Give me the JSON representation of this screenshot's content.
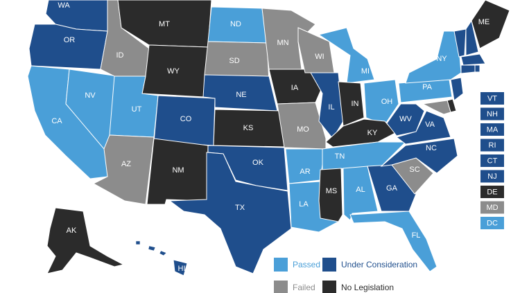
{
  "legend": [
    {
      "label": "Passed",
      "color": "#4a9fd8"
    },
    {
      "label": "Under Consideration",
      "color": "#1f4e8c"
    },
    {
      "label": "Failed",
      "color": "#8c8c8c"
    },
    {
      "label": "No Legislation",
      "color": "#2b2b2b"
    }
  ],
  "states": [
    {
      "label": "WA",
      "status": "Under Consideration"
    },
    {
      "label": "OR",
      "status": "Under Consideration"
    },
    {
      "label": "CA",
      "status": "Passed"
    },
    {
      "label": "NV",
      "status": "Passed"
    },
    {
      "label": "ID",
      "status": "Failed"
    },
    {
      "label": "MT",
      "status": "No Legislation"
    },
    {
      "label": "WY",
      "status": "No Legislation"
    },
    {
      "label": "UT",
      "status": "Passed"
    },
    {
      "label": "CO",
      "status": "Under Consideration"
    },
    {
      "label": "AZ",
      "status": "Failed"
    },
    {
      "label": "NM",
      "status": "No Legislation"
    },
    {
      "label": "ND",
      "status": "Passed"
    },
    {
      "label": "SD",
      "status": "Failed"
    },
    {
      "label": "NE",
      "status": "Under Consideration"
    },
    {
      "label": "KS",
      "status": "No Legislation"
    },
    {
      "label": "OK",
      "status": "Under Consideration"
    },
    {
      "label": "TX",
      "status": "Under Consideration"
    },
    {
      "label": "MN",
      "status": "Failed"
    },
    {
      "label": "IA",
      "status": "No Legislation"
    },
    {
      "label": "MO",
      "status": "Failed"
    },
    {
      "label": "AR",
      "status": "Passed"
    },
    {
      "label": "LA",
      "status": "Passed"
    },
    {
      "label": "WI",
      "status": "Failed"
    },
    {
      "label": "IL",
      "status": "Under Consideration"
    },
    {
      "label": "MI",
      "status": "Passed"
    },
    {
      "label": "IN",
      "status": "No Legislation"
    },
    {
      "label": "OH",
      "status": "Passed"
    },
    {
      "label": "KY",
      "status": "No Legislation"
    },
    {
      "label": "TN",
      "status": "Passed"
    },
    {
      "label": "MS",
      "status": "No Legislation"
    },
    {
      "label": "AL",
      "status": "Passed"
    },
    {
      "label": "GA",
      "status": "Under Consideration"
    },
    {
      "label": "FL",
      "status": "Passed"
    },
    {
      "label": "SC",
      "status": "Failed"
    },
    {
      "label": "NC",
      "status": "Under Consideration"
    },
    {
      "label": "VA",
      "status": "Under Consideration"
    },
    {
      "label": "WV",
      "status": "Under Consideration"
    },
    {
      "label": "PA",
      "status": "Passed"
    },
    {
      "label": "NY",
      "status": "Passed"
    },
    {
      "label": "ME",
      "status": "No Legislation"
    },
    {
      "label": "AK",
      "status": "No Legislation"
    },
    {
      "label": "HI",
      "status": "Under Consideration"
    },
    {
      "label": "VT",
      "status": "Under Consideration",
      "box": true
    },
    {
      "label": "NH",
      "status": "Under Consideration",
      "box": true
    },
    {
      "label": "MA",
      "status": "Under Consideration",
      "box": true
    },
    {
      "label": "RI",
      "status": "Under Consideration",
      "box": true
    },
    {
      "label": "CT",
      "status": "Under Consideration",
      "box": true
    },
    {
      "label": "NJ",
      "status": "Under Consideration",
      "box": true
    },
    {
      "label": "DE",
      "status": "No Legislation",
      "box": true
    },
    {
      "label": "MD",
      "status": "Failed",
      "box": true
    },
    {
      "label": "DC",
      "status": "Passed",
      "box": true
    }
  ]
}
